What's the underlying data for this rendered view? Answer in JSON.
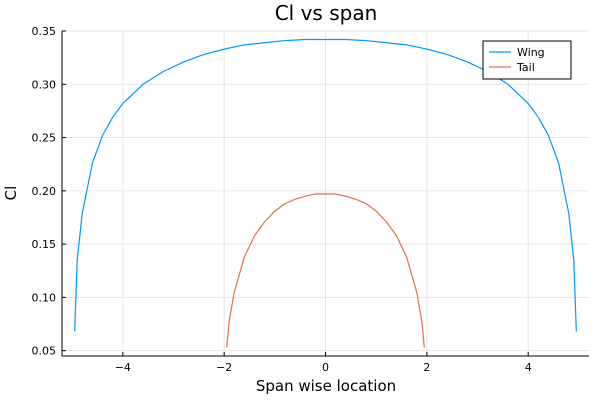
{
  "chart_data": {
    "type": "line",
    "title": "Cl vs span",
    "xlabel": "Span wise location",
    "ylabel": "Cl",
    "xlim": [
      -5.2,
      5.2
    ],
    "ylim": [
      0.045,
      0.35
    ],
    "xticks": [
      -4,
      -2,
      0,
      2,
      4
    ],
    "xtick_labels": [
      "−4",
      "−2",
      "0",
      "2",
      "4"
    ],
    "yticks": [
      0.05,
      0.1,
      0.15,
      0.2,
      0.25,
      0.3,
      0.35
    ],
    "ytick_labels": [
      "0.05",
      "0.10",
      "0.15",
      "0.20",
      "0.25",
      "0.30",
      "0.35"
    ],
    "grid": true,
    "legend_position": "top-right",
    "series": [
      {
        "name": "Wing",
        "color": "#009AFA",
        "x": [
          -4.95,
          -4.9,
          -4.8,
          -4.6,
          -4.4,
          -4.2,
          -4.0,
          -3.6,
          -3.2,
          -2.8,
          -2.4,
          -2.0,
          -1.6,
          -1.2,
          -0.8,
          -0.4,
          0.0,
          0.4,
          0.8,
          1.2,
          1.6,
          2.0,
          2.4,
          2.8,
          3.2,
          3.6,
          4.0,
          4.2,
          4.4,
          4.6,
          4.8,
          4.9,
          4.95
        ],
        "y": [
          0.068,
          0.135,
          0.179,
          0.226,
          0.252,
          0.269,
          0.282,
          0.3,
          0.312,
          0.321,
          0.328,
          0.333,
          0.337,
          0.339,
          0.341,
          0.342,
          0.342,
          0.342,
          0.341,
          0.339,
          0.337,
          0.333,
          0.328,
          0.321,
          0.312,
          0.3,
          0.282,
          0.269,
          0.252,
          0.226,
          0.179,
          0.135,
          0.068
        ]
      },
      {
        "name": "Tail",
        "color": "#E26F46",
        "x": [
          -1.95,
          -1.9,
          -1.8,
          -1.6,
          -1.4,
          -1.2,
          -1.0,
          -0.8,
          -0.6,
          -0.4,
          -0.2,
          0.0,
          0.2,
          0.4,
          0.6,
          0.8,
          1.0,
          1.2,
          1.4,
          1.6,
          1.8,
          1.9,
          1.95
        ],
        "y": [
          0.053,
          0.078,
          0.105,
          0.138,
          0.158,
          0.171,
          0.181,
          0.188,
          0.192,
          0.195,
          0.197,
          0.197,
          0.197,
          0.195,
          0.192,
          0.188,
          0.181,
          0.171,
          0.158,
          0.138,
          0.105,
          0.078,
          0.053
        ]
      }
    ]
  }
}
